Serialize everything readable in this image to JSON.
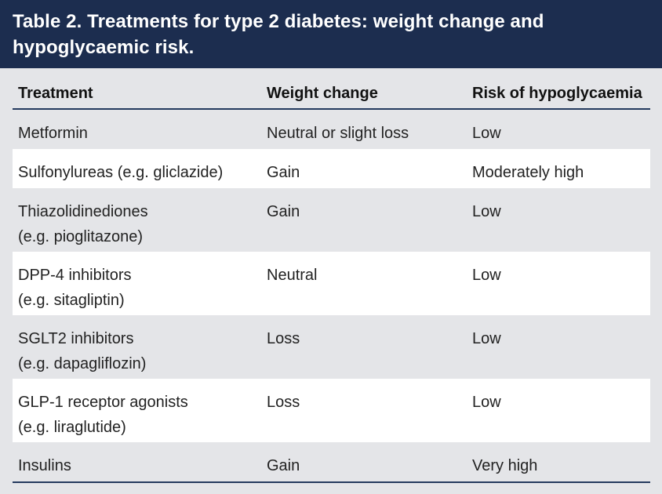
{
  "title": {
    "line1": "Table 2. Treatments for type 2 diabetes: weight change and",
    "line2": "hypoglycaemic risk."
  },
  "table": {
    "headers": [
      "Treatment",
      "Weight change",
      "Risk of hypoglycaemia"
    ],
    "rows": [
      {
        "treatment": [
          "Metformin"
        ],
        "weight": "Neutral or slight loss",
        "risk": "Low"
      },
      {
        "treatment": [
          "Sulfonylureas (e.g. gliclazide)"
        ],
        "weight": "Gain",
        "risk": "Moderately high"
      },
      {
        "treatment": [
          "Thiazolidinediones",
          "(e.g. pioglitazone)"
        ],
        "weight": "Gain",
        "risk": "Low"
      },
      {
        "treatment": [
          "DPP-4 inhibitors",
          "(e.g. sitagliptin)"
        ],
        "weight": "Neutral",
        "risk": "Low"
      },
      {
        "treatment": [
          "SGLT2 inhibitors",
          "(e.g. dapagliflozin)"
        ],
        "weight": "Loss",
        "risk": "Low"
      },
      {
        "treatment": [
          "GLP-1 receptor agonists",
          "(e.g. liraglutide)"
        ],
        "weight": "Loss",
        "risk": "Low"
      },
      {
        "treatment": [
          "Insulins"
        ],
        "weight": "Gain",
        "risk": "Very high"
      }
    ]
  },
  "colors": {
    "title_bg": "#1c2d4f",
    "rule": "#243a5e",
    "stripe_white": "#ffffff",
    "stripe_grey": "#e4e5e8"
  }
}
